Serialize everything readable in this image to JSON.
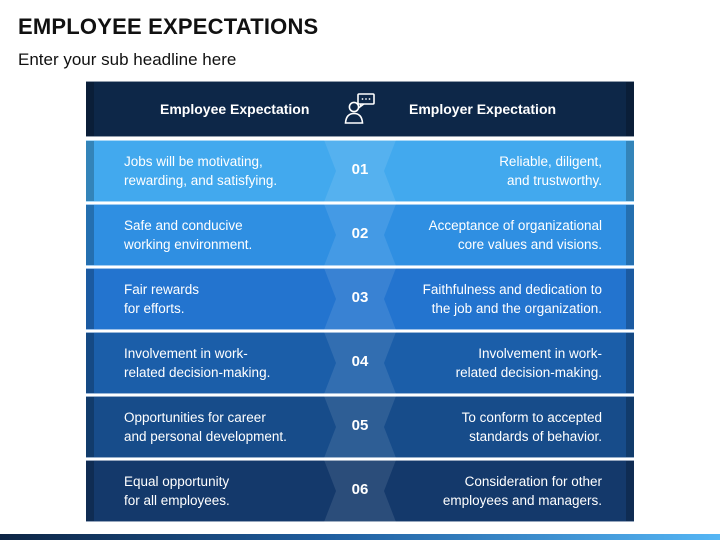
{
  "title": "EMPLOYEE EXPECTATIONS",
  "subtitle": "Enter your sub headline here",
  "header": {
    "left": "Employee Expectation",
    "right": "Employer Expectation",
    "icon": "person-chat-icon"
  },
  "colors": {
    "header": "#0d2748",
    "rows": [
      "#42a9ee",
      "#2f8fe2",
      "#2374cf",
      "#1b5ea9",
      "#174c8a",
      "#14396b"
    ]
  },
  "rows": [
    {
      "number": "01",
      "employee": "Jobs will be motivating,\nrewarding, and satisfying.",
      "employer": "Reliable, diligent,\nand trustworthy."
    },
    {
      "number": "02",
      "employee": "Safe and conducive\nworking environment.",
      "employer": "Acceptance of organizational\ncore values and visions."
    },
    {
      "number": "03",
      "employee": "Fair rewards\nfor efforts.",
      "employer": "Faithfulness and dedication to\nthe job and the organization."
    },
    {
      "number": "04",
      "employee": "Involvement in work-\nrelated decision-making.",
      "employer": "Involvement in work-\nrelated decision-making."
    },
    {
      "number": "05",
      "employee": "Opportunities for career\nand personal development.",
      "employer": "To conform to accepted\nstandards of behavior."
    },
    {
      "number": "06",
      "employee": "Equal opportunity\nfor all employees.",
      "employer": "Consideration for other\nemployees and managers."
    }
  ]
}
